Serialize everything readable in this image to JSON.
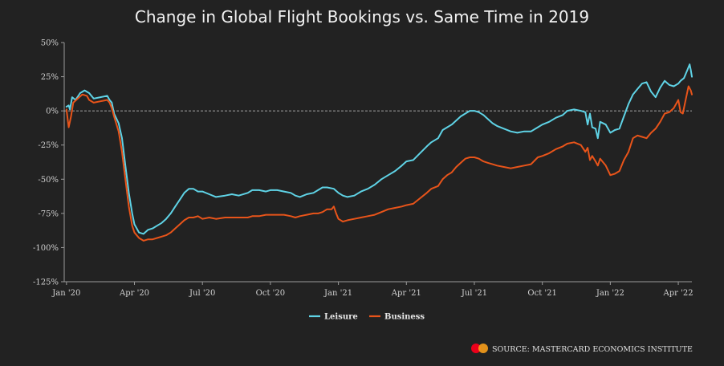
{
  "chart_data": {
    "type": "line",
    "title": "Change in Global Flight Bookings vs. Same Time in 2019",
    "y_ticks": [
      "50%",
      "25%",
      "0%",
      "-25%",
      "-50%",
      "-75%",
      "-100%",
      "-125%"
    ],
    "y_values": [
      50,
      25,
      0,
      -25,
      -50,
      -75,
      -100,
      -125
    ],
    "ylim": [
      -125,
      50
    ],
    "x_ticks": [
      "Jan '20",
      "Apr '20",
      "Jul '20",
      "Oct '20",
      "Jan '21",
      "Apr '21",
      "Jul '21",
      "Oct '21",
      "Jan '22",
      "Apr '22"
    ],
    "x_tick_months": [
      0,
      3,
      6,
      9,
      12,
      15,
      18,
      21,
      24,
      27
    ],
    "xlim": [
      -0.1,
      27.6
    ],
    "zero_line": true,
    "legend_position": "bottom-center",
    "series": [
      {
        "name": "Leisure",
        "color": "#5fd3e6",
        "points": [
          [
            0.0,
            3
          ],
          [
            0.1,
            4
          ],
          [
            0.15,
            1
          ],
          [
            0.25,
            10
          ],
          [
            0.4,
            8
          ],
          [
            0.6,
            13
          ],
          [
            0.8,
            15
          ],
          [
            1.0,
            13
          ],
          [
            1.2,
            9
          ],
          [
            1.5,
            10
          ],
          [
            1.8,
            11
          ],
          [
            1.9,
            8
          ],
          [
            2.0,
            6
          ],
          [
            2.1,
            -2
          ],
          [
            2.3,
            -9
          ],
          [
            2.45,
            -20
          ],
          [
            2.6,
            -40
          ],
          [
            2.75,
            -60
          ],
          [
            2.9,
            -75
          ],
          [
            3.0,
            -83
          ],
          [
            3.2,
            -89
          ],
          [
            3.4,
            -90
          ],
          [
            3.6,
            -87
          ],
          [
            3.8,
            -86
          ],
          [
            4.0,
            -84
          ],
          [
            4.2,
            -82
          ],
          [
            4.4,
            -79
          ],
          [
            4.6,
            -75
          ],
          [
            4.8,
            -70
          ],
          [
            5.0,
            -65
          ],
          [
            5.2,
            -60
          ],
          [
            5.4,
            -57
          ],
          [
            5.6,
            -57
          ],
          [
            5.8,
            -59
          ],
          [
            6.0,
            -59
          ],
          [
            6.3,
            -61
          ],
          [
            6.6,
            -63
          ],
          [
            7.0,
            -62
          ],
          [
            7.3,
            -61
          ],
          [
            7.6,
            -62
          ],
          [
            8.0,
            -60
          ],
          [
            8.2,
            -58
          ],
          [
            8.5,
            -58
          ],
          [
            8.8,
            -59
          ],
          [
            9.0,
            -58
          ],
          [
            9.3,
            -58
          ],
          [
            9.6,
            -59
          ],
          [
            9.9,
            -60
          ],
          [
            10.1,
            -62
          ],
          [
            10.3,
            -63
          ],
          [
            10.6,
            -61
          ],
          [
            10.9,
            -60
          ],
          [
            11.1,
            -58
          ],
          [
            11.3,
            -56
          ],
          [
            11.5,
            -56
          ],
          [
            11.8,
            -57
          ],
          [
            12.0,
            -60
          ],
          [
            12.2,
            -62
          ],
          [
            12.4,
            -63
          ],
          [
            12.7,
            -62
          ],
          [
            13.0,
            -59
          ],
          [
            13.3,
            -57
          ],
          [
            13.6,
            -54
          ],
          [
            13.9,
            -50
          ],
          [
            14.2,
            -47
          ],
          [
            14.5,
            -44
          ],
          [
            14.8,
            -40
          ],
          [
            15.0,
            -37
          ],
          [
            15.3,
            -36
          ],
          [
            15.6,
            -31
          ],
          [
            15.9,
            -26
          ],
          [
            16.1,
            -23
          ],
          [
            16.4,
            -20
          ],
          [
            16.6,
            -14
          ],
          [
            16.8,
            -12
          ],
          [
            17.0,
            -10
          ],
          [
            17.2,
            -7
          ],
          [
            17.4,
            -4
          ],
          [
            17.6,
            -2
          ],
          [
            17.8,
            0
          ],
          [
            18.0,
            0
          ],
          [
            18.2,
            -1
          ],
          [
            18.4,
            -3
          ],
          [
            18.6,
            -6
          ],
          [
            18.8,
            -9
          ],
          [
            19.0,
            -11
          ],
          [
            19.3,
            -13
          ],
          [
            19.6,
            -15
          ],
          [
            19.9,
            -16
          ],
          [
            20.2,
            -15
          ],
          [
            20.5,
            -15
          ],
          [
            20.8,
            -12
          ],
          [
            21.0,
            -10
          ],
          [
            21.3,
            -8
          ],
          [
            21.6,
            -5
          ],
          [
            21.9,
            -3
          ],
          [
            22.1,
            0
          ],
          [
            22.4,
            1
          ],
          [
            22.7,
            0
          ],
          [
            22.9,
            -1
          ],
          [
            23.0,
            -10
          ],
          [
            23.1,
            -2
          ],
          [
            23.2,
            -12
          ],
          [
            23.35,
            -13
          ],
          [
            23.45,
            -20
          ],
          [
            23.55,
            -8
          ],
          [
            23.8,
            -10
          ],
          [
            24.0,
            -16
          ],
          [
            24.2,
            -14
          ],
          [
            24.4,
            -13
          ],
          [
            24.6,
            -4
          ],
          [
            24.8,
            5
          ],
          [
            25.0,
            12
          ],
          [
            25.2,
            16
          ],
          [
            25.4,
            20
          ],
          [
            25.6,
            21
          ],
          [
            25.8,
            14
          ],
          [
            26.0,
            10
          ],
          [
            26.2,
            17
          ],
          [
            26.4,
            22
          ],
          [
            26.6,
            19
          ],
          [
            26.8,
            18
          ],
          [
            27.0,
            20
          ],
          [
            27.1,
            22
          ],
          [
            27.25,
            24
          ],
          [
            27.4,
            30
          ],
          [
            27.5,
            34
          ],
          [
            27.55,
            30
          ],
          [
            27.6,
            25
          ]
        ]
      },
      {
        "name": "Business",
        "color": "#e8541a",
        "points": [
          [
            0.0,
            1
          ],
          [
            0.1,
            -12
          ],
          [
            0.2,
            -4
          ],
          [
            0.3,
            6
          ],
          [
            0.5,
            9
          ],
          [
            0.7,
            12
          ],
          [
            0.9,
            11
          ],
          [
            1.0,
            8
          ],
          [
            1.2,
            6
          ],
          [
            1.5,
            7
          ],
          [
            1.8,
            8
          ],
          [
            1.9,
            6
          ],
          [
            2.0,
            2
          ],
          [
            2.1,
            -4
          ],
          [
            2.3,
            -15
          ],
          [
            2.45,
            -30
          ],
          [
            2.6,
            -50
          ],
          [
            2.75,
            -70
          ],
          [
            2.9,
            -84
          ],
          [
            3.0,
            -89
          ],
          [
            3.2,
            -93
          ],
          [
            3.4,
            -95
          ],
          [
            3.6,
            -94
          ],
          [
            3.8,
            -94
          ],
          [
            4.0,
            -93
          ],
          [
            4.2,
            -92
          ],
          [
            4.4,
            -91
          ],
          [
            4.6,
            -89
          ],
          [
            4.8,
            -86
          ],
          [
            5.0,
            -83
          ],
          [
            5.2,
            -80
          ],
          [
            5.4,
            -78
          ],
          [
            5.6,
            -78
          ],
          [
            5.8,
            -77
          ],
          [
            6.0,
            -79
          ],
          [
            6.3,
            -78
          ],
          [
            6.6,
            -79
          ],
          [
            7.0,
            -78
          ],
          [
            7.3,
            -78
          ],
          [
            7.6,
            -78
          ],
          [
            8.0,
            -78
          ],
          [
            8.2,
            -77
          ],
          [
            8.5,
            -77
          ],
          [
            8.8,
            -76
          ],
          [
            9.0,
            -76
          ],
          [
            9.3,
            -76
          ],
          [
            9.6,
            -76
          ],
          [
            9.9,
            -77
          ],
          [
            10.1,
            -78
          ],
          [
            10.3,
            -77
          ],
          [
            10.6,
            -76
          ],
          [
            10.9,
            -75
          ],
          [
            11.1,
            -75
          ],
          [
            11.3,
            -74
          ],
          [
            11.5,
            -72
          ],
          [
            11.7,
            -72
          ],
          [
            11.8,
            -70
          ],
          [
            11.9,
            -75
          ],
          [
            12.0,
            -79
          ],
          [
            12.2,
            -81
          ],
          [
            12.4,
            -80
          ],
          [
            12.7,
            -79
          ],
          [
            13.0,
            -78
          ],
          [
            13.3,
            -77
          ],
          [
            13.6,
            -76
          ],
          [
            13.9,
            -74
          ],
          [
            14.2,
            -72
          ],
          [
            14.5,
            -71
          ],
          [
            14.8,
            -70
          ],
          [
            15.0,
            -69
          ],
          [
            15.3,
            -68
          ],
          [
            15.6,
            -64
          ],
          [
            15.9,
            -60
          ],
          [
            16.1,
            -57
          ],
          [
            16.4,
            -55
          ],
          [
            16.6,
            -50
          ],
          [
            16.8,
            -47
          ],
          [
            17.0,
            -45
          ],
          [
            17.2,
            -41
          ],
          [
            17.4,
            -38
          ],
          [
            17.6,
            -35
          ],
          [
            17.8,
            -34
          ],
          [
            18.0,
            -34
          ],
          [
            18.2,
            -35
          ],
          [
            18.4,
            -37
          ],
          [
            18.6,
            -38
          ],
          [
            18.8,
            -39
          ],
          [
            19.0,
            -40
          ],
          [
            19.3,
            -41
          ],
          [
            19.6,
            -42
          ],
          [
            19.9,
            -41
          ],
          [
            20.2,
            -40
          ],
          [
            20.5,
            -39
          ],
          [
            20.8,
            -34
          ],
          [
            21.0,
            -33
          ],
          [
            21.3,
            -31
          ],
          [
            21.6,
            -28
          ],
          [
            21.9,
            -26
          ],
          [
            22.1,
            -24
          ],
          [
            22.4,
            -23
          ],
          [
            22.7,
            -25
          ],
          [
            22.9,
            -30
          ],
          [
            23.0,
            -27
          ],
          [
            23.1,
            -36
          ],
          [
            23.2,
            -33
          ],
          [
            23.35,
            -37
          ],
          [
            23.45,
            -40
          ],
          [
            23.55,
            -35
          ],
          [
            23.8,
            -40
          ],
          [
            24.0,
            -47
          ],
          [
            24.2,
            -46
          ],
          [
            24.4,
            -44
          ],
          [
            24.6,
            -36
          ],
          [
            24.8,
            -30
          ],
          [
            25.0,
            -20
          ],
          [
            25.2,
            -18
          ],
          [
            25.4,
            -19
          ],
          [
            25.6,
            -20
          ],
          [
            25.8,
            -16
          ],
          [
            26.0,
            -13
          ],
          [
            26.2,
            -8
          ],
          [
            26.4,
            -2
          ],
          [
            26.6,
            -1
          ],
          [
            26.8,
            2
          ],
          [
            27.0,
            8
          ],
          [
            27.1,
            -1
          ],
          [
            27.2,
            -2
          ],
          [
            27.3,
            6
          ],
          [
            27.45,
            18
          ],
          [
            27.55,
            15
          ],
          [
            27.6,
            12
          ]
        ]
      }
    ]
  },
  "source_text": "SOURCE: MASTERCARD ECONOMICS INSTITUTE",
  "colors": {
    "background": "#222222",
    "axis": "#aaaaaa",
    "text": "#d0d0d0",
    "mastercard_red": "#eb001b",
    "mastercard_orange": "#f79e1b"
  }
}
